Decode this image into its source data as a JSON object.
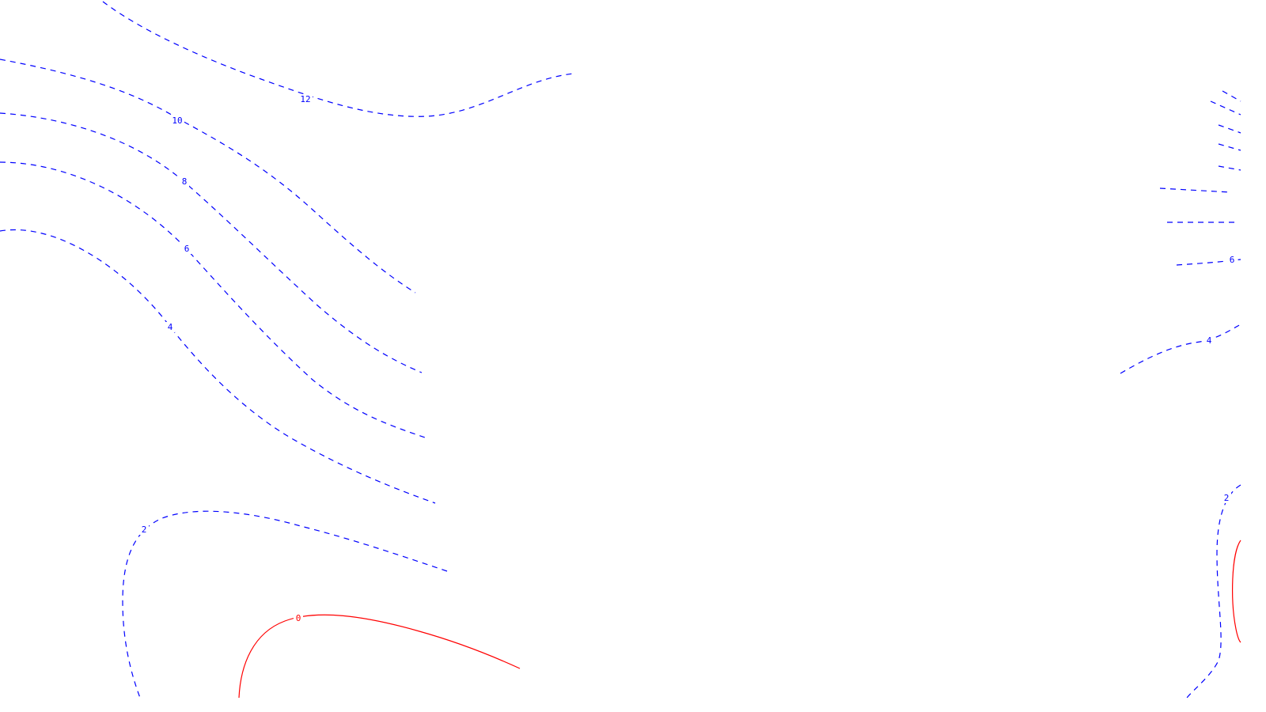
{
  "chart_data": {
    "type": "contour",
    "title": "",
    "xlabel": "",
    "ylabel": "",
    "grid": false,
    "line_styles": {
      "positive": "dashed",
      "zero": "solid"
    },
    "colors": {
      "positive": "#0000ff",
      "zero": "#ff0000",
      "background": "#ffffff"
    },
    "contour_levels": [
      {
        "level": 12,
        "label": "12",
        "color": "#0000ff",
        "style": "dashed"
      },
      {
        "level": 10,
        "label": "10",
        "color": "#0000ff",
        "style": "dashed"
      },
      {
        "level": 8,
        "label": "8",
        "color": "#0000ff",
        "style": "dashed"
      },
      {
        "level": 6,
        "label": "6",
        "color": "#0000ff",
        "style": "dashed"
      },
      {
        "level": 4,
        "label": "4",
        "color": "#0000ff",
        "style": "dashed"
      },
      {
        "level": 2,
        "label": "2",
        "color": "#0000ff",
        "style": "dashed"
      },
      {
        "level": 0,
        "label": "0",
        "color": "#ff0000",
        "style": "solid"
      }
    ]
  }
}
